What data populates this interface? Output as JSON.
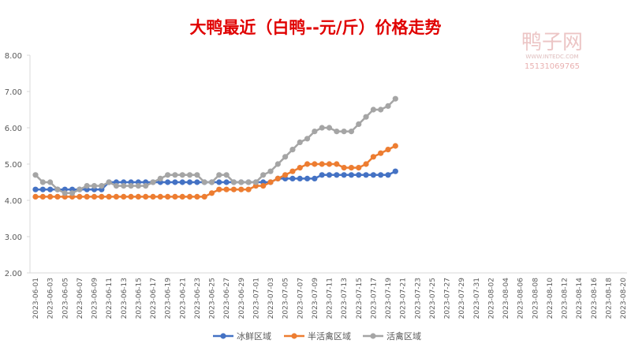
{
  "chart_data": {
    "type": "line",
    "title": "大鸭最近（白鸭--元/斤）价格走势",
    "watermark": [
      "鸭子网",
      "WWW.INTEDC.COM",
      "15131069765"
    ],
    "categories": [
      "2023-06-01",
      null,
      "2023-06-03",
      null,
      "2023-06-05",
      null,
      "2023-06-07",
      null,
      "2023-06-09",
      null,
      "2023-06-11",
      null,
      "2023-06-13",
      null,
      "2023-06-15",
      null,
      "2023-06-17",
      null,
      "2023-06-19",
      null,
      "2023-06-21",
      null,
      "2023-06-23",
      null,
      "2023-06-25",
      null,
      "2023-06-27",
      null,
      "2023-06-29",
      null,
      "2023-07-01",
      null,
      "2023-07-03",
      null,
      "2023-07-05",
      null,
      "2023-07-07",
      null,
      "2023-07-09",
      null,
      "2023-07-11",
      null,
      "2023-07-13",
      null,
      "2023-07-15",
      null,
      "2023-07-17",
      null,
      "2023-07-19",
      null,
      "2023-07-21",
      null,
      "2023-07-23",
      null,
      "2023-07-25",
      null,
      "2023-07-27",
      null,
      "2023-07-29",
      null,
      "2023-07-31",
      null,
      "2023-08-02",
      null,
      "2023-08-04",
      null,
      "2023-08-06",
      null,
      "2023-08-08",
      null,
      "2023-08-10",
      null,
      "2023-08-12",
      null,
      "2023-08-14",
      null,
      "2023-08-16",
      null,
      "2023-08-18",
      null,
      "2023-08-20"
    ],
    "series": [
      {
        "name": "冰鲜区域",
        "color": "#4472c4",
        "values": [
          4.3,
          4.3,
          4.3,
          4.3,
          4.3,
          4.3,
          4.3,
          4.3,
          4.3,
          4.3,
          4.5,
          4.5,
          4.5,
          4.5,
          4.5,
          4.5,
          4.5,
          4.5,
          4.5,
          4.5,
          4.5,
          4.5,
          4.5,
          4.5,
          4.5,
          4.5,
          4.5,
          4.5,
          4.5,
          4.5,
          4.5,
          4.5,
          4.5,
          4.6,
          4.6,
          4.6,
          4.6,
          4.6,
          4.6,
          4.7,
          4.7,
          4.7,
          4.7,
          4.7,
          4.7,
          4.7,
          4.7,
          4.7,
          4.7,
          4.8,
          null,
          null,
          null,
          null,
          null,
          null,
          null,
          null,
          null,
          null,
          null,
          null,
          null,
          null,
          null,
          null,
          null,
          null,
          null,
          null,
          null,
          null,
          null,
          null,
          null,
          null,
          null,
          null,
          null,
          null,
          null
        ]
      },
      {
        "name": "半活禽区域",
        "color": "#ed7d31",
        "values": [
          4.1,
          4.1,
          4.1,
          4.1,
          4.1,
          4.1,
          4.1,
          4.1,
          4.1,
          4.1,
          4.1,
          4.1,
          4.1,
          4.1,
          4.1,
          4.1,
          4.1,
          4.1,
          4.1,
          4.1,
          4.1,
          4.1,
          4.1,
          4.1,
          4.2,
          4.3,
          4.3,
          4.3,
          4.3,
          4.3,
          4.4,
          4.4,
          4.5,
          4.6,
          4.7,
          4.8,
          4.9,
          5.0,
          5.0,
          5.0,
          5.0,
          5.0,
          4.9,
          4.9,
          4.9,
          5.0,
          5.2,
          5.3,
          5.4,
          5.5,
          null,
          null,
          null,
          null,
          null,
          null,
          null,
          null,
          null,
          null,
          null,
          null,
          null,
          null,
          null,
          null,
          null,
          null,
          null,
          null,
          null,
          null,
          null,
          null,
          null,
          null,
          null,
          null,
          null,
          null,
          null
        ]
      },
      {
        "name": "活禽区域",
        "color": "#a5a5a5",
        "values": [
          4.7,
          4.5,
          4.5,
          4.3,
          4.2,
          4.2,
          4.3,
          4.4,
          4.4,
          4.4,
          4.5,
          4.4,
          4.4,
          4.4,
          4.4,
          4.4,
          4.5,
          4.6,
          4.7,
          4.7,
          4.7,
          4.7,
          4.7,
          4.5,
          4.5,
          4.7,
          4.7,
          4.5,
          4.5,
          4.5,
          4.5,
          4.7,
          4.8,
          5.0,
          5.2,
          5.4,
          5.6,
          5.7,
          5.9,
          6.0,
          6.0,
          5.9,
          5.9,
          5.9,
          6.1,
          6.3,
          6.5,
          6.5,
          6.6,
          6.8,
          null,
          null,
          null,
          null,
          null,
          null,
          null,
          null,
          null,
          null,
          null,
          null,
          null,
          null,
          null,
          null,
          null,
          null,
          null,
          null,
          null,
          null,
          null,
          null,
          null,
          null,
          null,
          null,
          null,
          null,
          null
        ]
      }
    ],
    "ylim": [
      2,
      8
    ],
    "yticks": [
      {
        "value": 2,
        "label": "2.00"
      },
      {
        "value": 3,
        "label": "3.00"
      },
      {
        "value": 4,
        "label": "4.00"
      },
      {
        "value": 5,
        "label": "5.00"
      },
      {
        "value": 6,
        "label": "6.00"
      },
      {
        "value": 7,
        "label": "7.00"
      },
      {
        "value": 8,
        "label": "8.00"
      }
    ],
    "grid": false,
    "legend": "bottom"
  }
}
